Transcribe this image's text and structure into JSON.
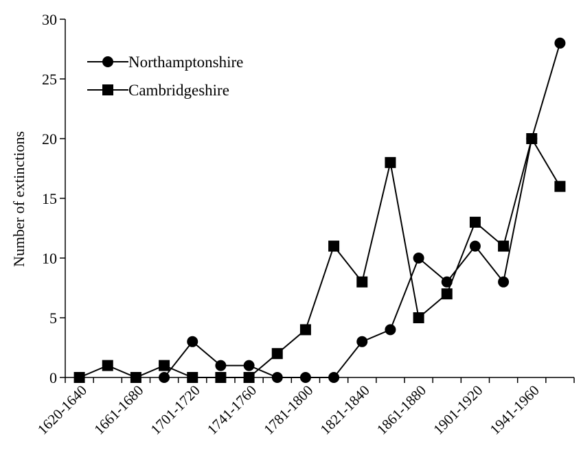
{
  "chart_data": {
    "type": "line",
    "title": "",
    "xlabel": "",
    "ylabel": "Number of extinctions",
    "ylim": [
      0,
      30
    ],
    "yticks": [
      0,
      5,
      10,
      15,
      20,
      25,
      30
    ],
    "grid": false,
    "legend_position": "top-left",
    "x_tick_labels": [
      "1620-1640",
      "1661-1680",
      "1701-1720",
      "1741-1760",
      "1781-1800",
      "1821-1840",
      "1861-1880",
      "1901-1920",
      "1941-1960"
    ],
    "series": [
      {
        "name": "Northamptonshire",
        "marker": "circle",
        "color": "#000000",
        "points": [
          [
            3,
            0
          ],
          [
            4,
            3
          ],
          [
            5,
            1
          ],
          [
            6,
            1
          ],
          [
            7,
            0
          ],
          [
            8,
            0
          ],
          [
            9,
            0
          ],
          [
            10,
            3
          ],
          [
            11,
            4
          ],
          [
            12,
            10
          ],
          [
            13,
            8
          ],
          [
            14,
            11
          ],
          [
            15,
            8
          ],
          [
            16,
            20
          ],
          [
            17,
            28
          ]
        ]
      },
      {
        "name": "Cambridgeshire",
        "marker": "square",
        "color": "#000000",
        "points": [
          [
            0,
            0
          ],
          [
            1,
            1
          ],
          [
            2,
            0
          ],
          [
            3,
            1
          ],
          [
            4,
            0
          ],
          [
            5,
            0
          ],
          [
            6,
            0
          ],
          [
            7,
            2
          ],
          [
            8,
            4
          ],
          [
            9,
            11
          ],
          [
            10,
            8
          ],
          [
            11,
            18
          ],
          [
            12,
            5
          ],
          [
            13,
            7
          ],
          [
            14,
            13
          ],
          [
            15,
            11
          ],
          [
            16,
            20
          ],
          [
            17,
            16
          ]
        ]
      }
    ]
  }
}
